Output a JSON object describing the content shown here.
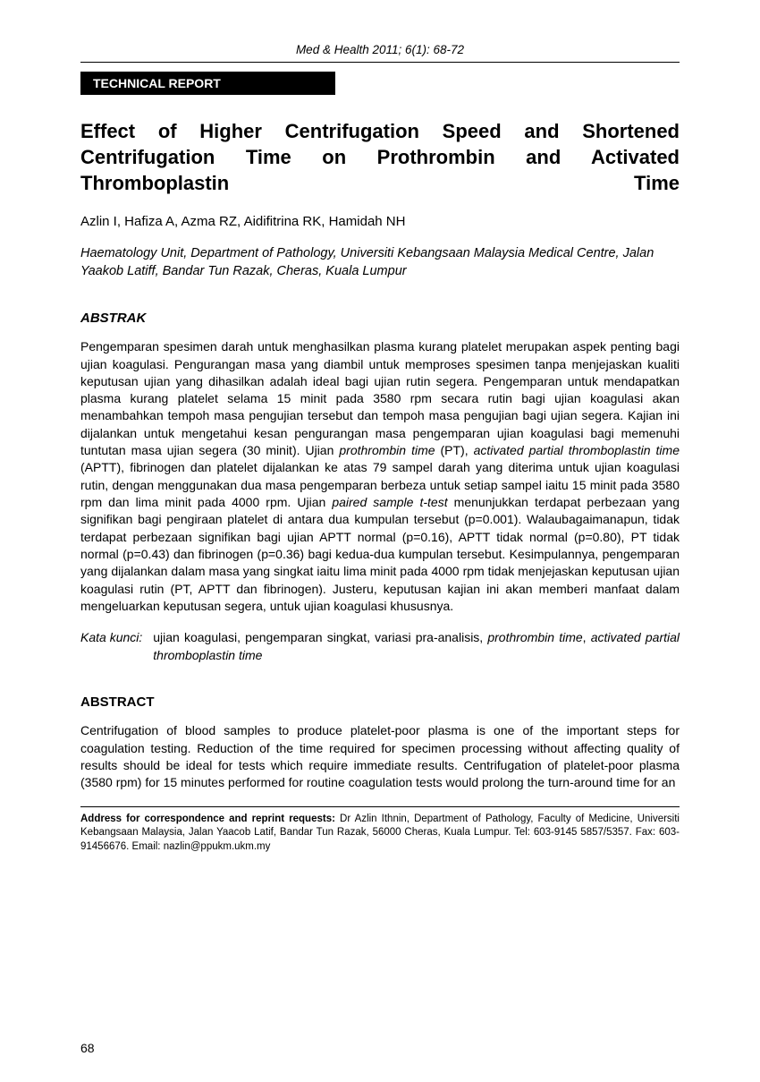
{
  "header": {
    "citation": "Med & Health 2011; 6(1): 68-72"
  },
  "sectionLabel": "TECHNICAL REPORT",
  "title": "Effect of Higher Centrifugation Speed and Shortened Centrifugation Time on Prothrombin and Activated Thromboplastin Time",
  "authors": "Azlin I, Hafiza A, Azma RZ, Aidifitrina RK, Hamidah NH",
  "affiliation": "Haematology Unit, Department of Pathology, Universiti Kebangsaan Malaysia Medical Centre, Jalan Yaakob Latiff, Bandar Tun Razak, Cheras, Kuala Lumpur",
  "abstrak": {
    "heading": "ABSTRAK",
    "bodyHtml": "Pengemparan spesimen darah untuk menghasilkan plasma kurang platelet merupakan aspek penting bagi ujian koagulasi. Pengurangan masa yang diambil untuk memproses spesimen tanpa menjejaskan kualiti keputusan ujian yang dihasilkan adalah ideal bagi ujian rutin segera. Pengemparan untuk mendapatkan plasma kurang platelet selama 15 minit pada 3580 rpm secara rutin bagi ujian koagulasi akan menambahkan tempoh masa pengujian tersebut dan tempoh masa pengujian bagi ujian segera. Kajian ini dijalankan untuk mengetahui kesan pengurangan masa pengemparan ujian koagulasi bagi memenuhi tuntutan masa ujian segera (30 minit). Ujian <em>prothrombin time</em> (PT), <em>activated partial thromboplastin time</em> (APTT), fibrinogen dan platelet dijalankan ke atas 79 sampel darah yang diterima untuk ujian koagulasi rutin, dengan menggunakan dua masa pengemparan berbeza untuk setiap sampel iaitu 15 minit pada 3580 rpm dan lima minit pada 4000 rpm. Ujian <em>paired sample t-test</em> menunjukkan terdapat perbezaan yang signifikan bagi pengiraan platelet di antara dua kumpulan tersebut (p=0.001). Walaubagaimanapun, tidak terdapat perbezaan signifikan bagi ujian APTT normal (p=0.16), APTT tidak normal (p=0.80), PT tidak normal (p=0.43) dan fibrinogen (p=0.36) bagi kedua-dua kumpulan tersebut. Kesimpulannya, pengemparan yang dijalankan dalam masa yang singkat iaitu lima minit pada 4000 rpm tidak menjejaskan keputusan ujian koagulasi rutin (PT, APTT dan fibrinogen). Justeru, keputusan kajian ini akan memberi manfaat dalam mengeluarkan keputusan segera, untuk ujian koagulasi khususnya."
  },
  "kataKunci": {
    "label": "Kata kunci:",
    "textHtml": "ujian koagulasi, pengemparan singkat, variasi pra-analisis, <em>prothrombin time</em>, <em>activated partial thromboplastin time</em>"
  },
  "abstract": {
    "heading": "ABSTRACT",
    "body": "Centrifugation of blood samples to produce platelet-poor plasma is one of the important steps for coagulation testing. Reduction of the time required for specimen processing without affecting quality of results should be ideal for tests which require immediate results. Centrifugation of platelet-poor plasma (3580 rpm) for 15 minutes performed for routine coagulation tests would prolong the turn-around time for an"
  },
  "correspondence": {
    "label": "Address for correspondence and reprint requests:",
    "text": "Dr Azlin Ithnin, Department of Pathology, Faculty of Medicine, Universiti Kebangsaan Malaysia, Jalan Yaacob Latif, Bandar Tun Razak, 56000 Cheras, Kuala Lumpur. Tel: 603-9145 5857/5357. Fax: 603- 91456676. Email: nazlin@ppukm.ukm.my"
  },
  "pageNumber": "68",
  "style": {
    "pageWidth": 850,
    "pageHeight": 1209,
    "backgroundColor": "#ffffff",
    "textColor": "#000000",
    "sectionLabelBg": "#000000",
    "sectionLabelColor": "#ffffff",
    "fontFamily": "Arial, Helvetica, sans-serif",
    "titleFontSize": 22,
    "bodyFontSize": 14,
    "footerFontSize": 11.5
  }
}
